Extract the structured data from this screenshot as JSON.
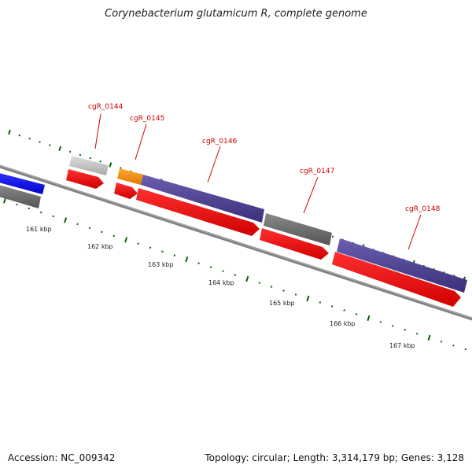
{
  "title": "Corynebacterium glutamicum R, complete genome",
  "footer": {
    "accession": "Accession: NC_009342",
    "stats": "Topology: circular; Length: 3,314,179 bp; Genes: 3,128"
  },
  "scale": {
    "unit": "kbp",
    "ticks": [
      "161 kbp",
      "162 kbp",
      "163 kbp",
      "164 kbp",
      "165 kbp",
      "166 kbp",
      "167 kbp"
    ]
  },
  "colors": {
    "cds_forward": "#483d8b",
    "cds_reverse": "#ff0000",
    "gene_gray": "#696969",
    "gene_light": "#c8c8c8",
    "gene_orange": "#ff8c00",
    "gene_blue": "#0000ff",
    "backbone": "#808080",
    "tick_green": "#006400",
    "label_red": "#cc0000"
  },
  "genes": [
    {
      "label": "cgR_0144"
    },
    {
      "label": "cgR_0145"
    },
    {
      "label": "cgR_0146"
    },
    {
      "label": "cgR_0147"
    },
    {
      "label": "cgR_0148"
    }
  ]
}
